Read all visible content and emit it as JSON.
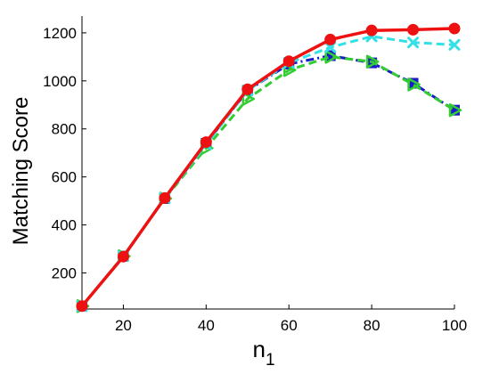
{
  "chart_data": {
    "type": "line",
    "title": "",
    "xlabel_base": "n",
    "xlabel_sub": "1",
    "ylabel": "Matching Score",
    "xlim": [
      10,
      100
    ],
    "ylim": [
      50,
      1270
    ],
    "xticks": [
      20,
      40,
      60,
      80,
      100
    ],
    "yticks": [
      200,
      400,
      600,
      800,
      1000,
      1200
    ],
    "grid": false,
    "x": [
      10,
      20,
      30,
      40,
      50,
      60,
      70,
      80,
      90,
      100
    ],
    "series": [
      {
        "color": "#1a1acc",
        "line": "dashdot",
        "marker": "square",
        "values": [
          62,
          270,
          510,
          740,
          960,
          1070,
          1105,
          1075,
          990,
          878
        ]
      },
      {
        "color": "#33cc33",
        "line": "dashed",
        "marker": "triangle-right",
        "values": [
          62,
          270,
          510,
          720,
          925,
          1045,
          1100,
          1080,
          985,
          878
        ]
      },
      {
        "color": "#33e0e6",
        "line": "dashed",
        "marker": "x",
        "values": [
          62,
          270,
          512,
          735,
          960,
          1075,
          1140,
          1185,
          1160,
          1150
        ]
      },
      {
        "color": "#ee1111",
        "line": "solid",
        "marker": "circle",
        "values": [
          62,
          268,
          512,
          745,
          965,
          1082,
          1172,
          1210,
          1213,
          1218
        ]
      }
    ]
  }
}
